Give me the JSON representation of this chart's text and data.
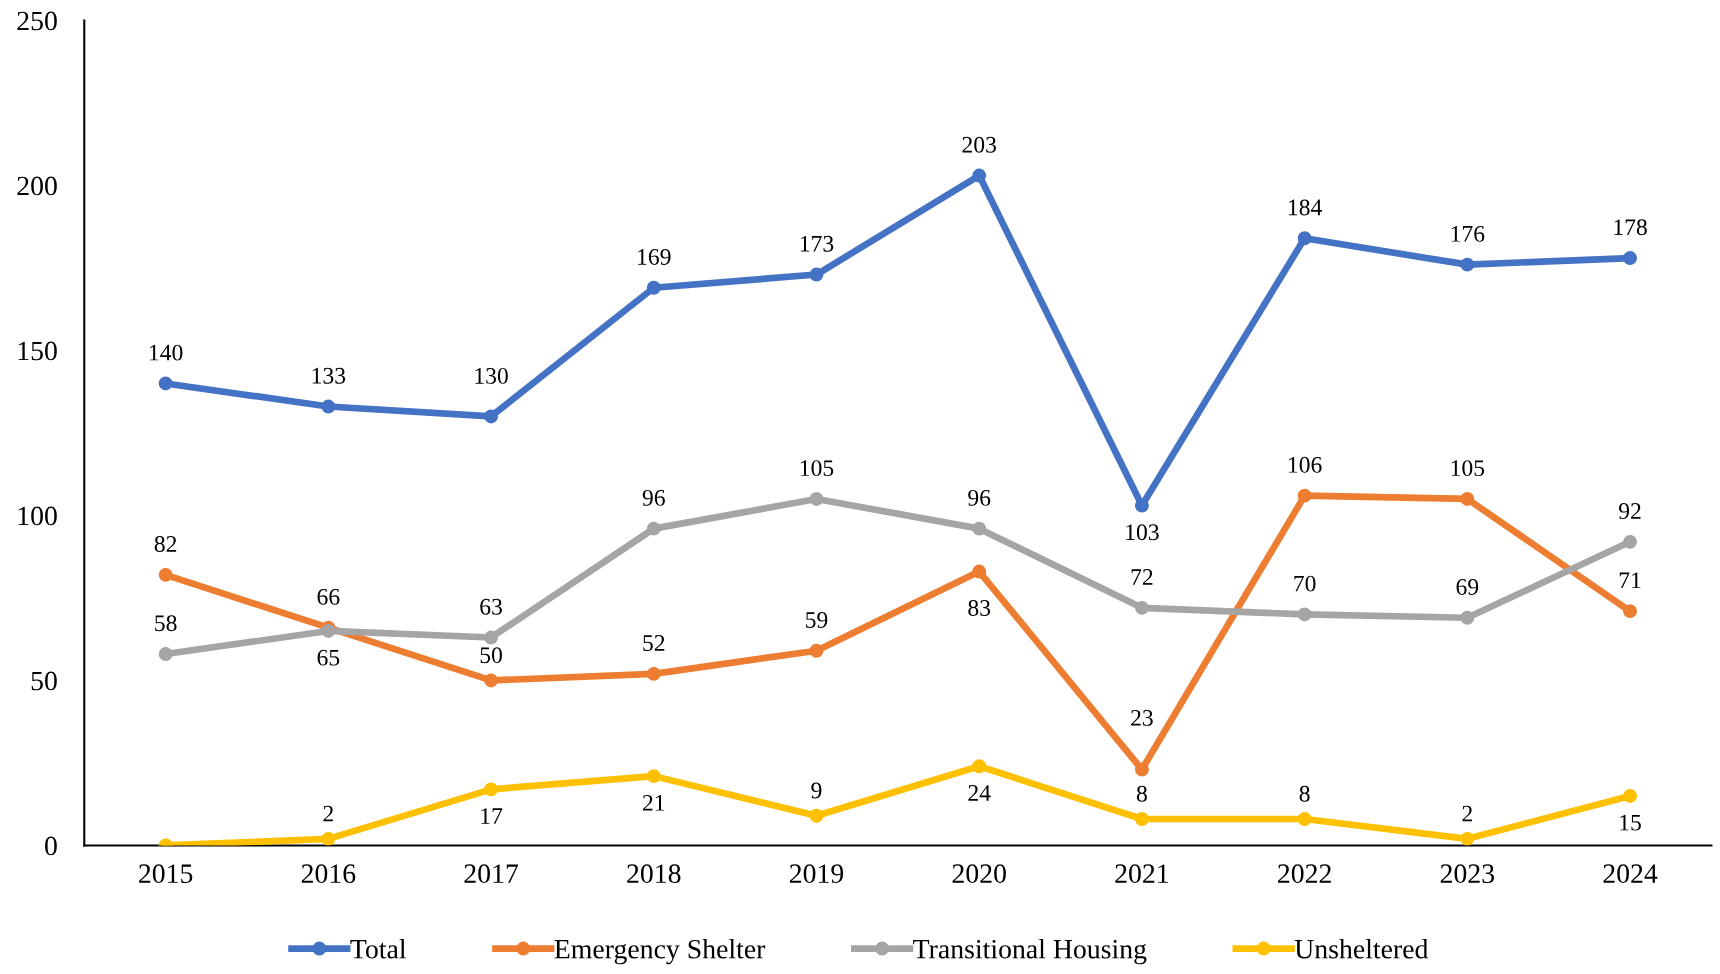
{
  "chart_data": {
    "type": "line",
    "categories": [
      "2015",
      "2016",
      "2017",
      "2018",
      "2019",
      "2020",
      "2021",
      "2022",
      "2023",
      "2024"
    ],
    "series": [
      {
        "name": "Total",
        "color": "#4472c4",
        "values": [
          140,
          133,
          130,
          169,
          173,
          203,
          103,
          184,
          176,
          178
        ]
      },
      {
        "name": "Emergency Shelter",
        "color": "#ed7d31",
        "values": [
          82,
          66,
          50,
          52,
          59,
          83,
          23,
          106,
          105,
          71
        ]
      },
      {
        "name": "Transitional Housing",
        "color": "#a5a5a5",
        "values": [
          58,
          65,
          63,
          96,
          105,
          96,
          72,
          70,
          69,
          92
        ]
      },
      {
        "name": "Unsheltered",
        "color": "#ffc000",
        "values": [
          0,
          2,
          17,
          21,
          9,
          24,
          8,
          8,
          2,
          15
        ],
        "value_labels": [
          null,
          "2",
          "17",
          "21",
          "9",
          "24",
          "8",
          "8",
          "2",
          "15"
        ]
      }
    ],
    "ylim": [
      0,
      250
    ],
    "yticks": [
      0,
      50,
      100,
      150,
      200,
      250
    ],
    "data_labels": true,
    "grid": false,
    "legend": "bottom",
    "marker": "circle",
    "line_style": "solid"
  }
}
